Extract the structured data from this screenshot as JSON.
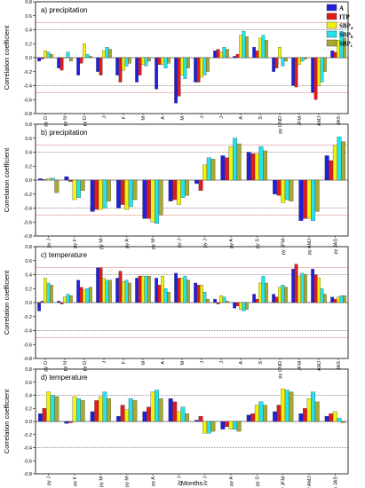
{
  "colors": {
    "A": "#1f1fe0",
    "ITP": "#e21a1a",
    "SBPa": "#f2f20a",
    "SBPb": "#22e4ee",
    "SBPc": "#a8a832",
    "sig95": "#333333",
    "sig99": "#e07878"
  },
  "legend": {
    "items": [
      {
        "key": "A",
        "label": "A"
      },
      {
        "key": "ITP",
        "label": "ITP"
      },
      {
        "key": "SBPa",
        "label": "SBP",
        "sub": "a"
      },
      {
        "key": "SBPb",
        "label": "SBP",
        "sub": "b"
      },
      {
        "key": "SBPc",
        "label": "SBP",
        "sub": "c"
      }
    ]
  },
  "chart_data": [
    {
      "type": "bar",
      "title": "a) precipitation",
      "ylabel": "Correlation coefficient",
      "xlabel": "",
      "ylim": [
        -0.8,
        0.8
      ],
      "yticks": [
        "0.8",
        "0.6",
        "0.4",
        "0.2",
        "0.0",
        "-0.2",
        "-0.4",
        "-0.6",
        "-0.8"
      ],
      "sig_lines": [
        0.4,
        -0.4,
        0.5,
        -0.5
      ],
      "categories": [
        "py O",
        "py N",
        "py D",
        "J",
        "F",
        "M",
        "A",
        "M",
        "J",
        "J",
        "A",
        "S",
        "py OND",
        "JFM",
        "AMJ",
        "JAS"
      ],
      "series": [
        {
          "name": "A",
          "values": [
            -0.05,
            -0.15,
            -0.25,
            -0.2,
            -0.25,
            -0.35,
            -0.45,
            -0.65,
            -0.35,
            0.1,
            0.02,
            0.15,
            -0.2,
            -0.4,
            -0.5,
            0.1
          ]
        },
        {
          "name": "ITP",
          "values": [
            -0.02,
            -0.18,
            -0.08,
            -0.25,
            -0.35,
            -0.25,
            -0.1,
            -0.55,
            -0.35,
            0.12,
            0.05,
            0.1,
            -0.15,
            -0.42,
            -0.6,
            0.08
          ]
        },
        {
          "name": "SBPa",
          "values": [
            0.1,
            0.0,
            0.2,
            0.1,
            -0.18,
            -0.1,
            -0.1,
            -0.25,
            -0.28,
            0.08,
            0.32,
            0.28,
            0.15,
            -0.1,
            -0.4,
            0.25
          ]
        },
        {
          "name": "SBPb",
          "values": [
            0.08,
            0.08,
            0.05,
            0.15,
            -0.12,
            -0.12,
            -0.15,
            -0.3,
            -0.25,
            0.15,
            0.38,
            0.32,
            -0.12,
            -0.05,
            -0.35,
            0.38
          ]
        },
        {
          "name": "SBPc",
          "values": [
            0.05,
            -0.05,
            0.02,
            0.12,
            -0.08,
            -0.05,
            -0.08,
            -0.15,
            -0.2,
            0.12,
            0.3,
            0.25,
            -0.05,
            -0.02,
            -0.2,
            0.28
          ]
        }
      ]
    },
    {
      "type": "bar",
      "title": "b) precipitation",
      "ylabel": "Correlation coefficient",
      "xlabel": "",
      "ylim": [
        -0.8,
        0.8
      ],
      "yticks": [
        "0.8",
        "0.6",
        "0.4",
        "0.2",
        "0.0",
        "-0.2",
        "-0.4",
        "-0.6",
        "-0.8"
      ],
      "sig_lines": [
        0.4,
        -0.4,
        0.5,
        -0.5
      ],
      "categories": [
        "py J",
        "py F",
        "py M",
        "py A",
        "py M",
        "py J",
        "py J",
        "py A",
        "py S",
        "py JFM",
        "py AMJ",
        "py JAS"
      ],
      "series": [
        {
          "name": "A",
          "values": [
            0.02,
            0.05,
            -0.45,
            -0.4,
            -0.55,
            -0.3,
            -0.05,
            0.35,
            0.4,
            -0.2,
            -0.58,
            0.35
          ]
        },
        {
          "name": "ITP",
          "values": [
            0.01,
            -0.02,
            -0.42,
            -0.35,
            -0.55,
            -0.28,
            -0.15,
            0.32,
            0.38,
            -0.22,
            -0.55,
            0.28
          ]
        },
        {
          "name": "SBPa",
          "values": [
            0.02,
            -0.28,
            -0.42,
            -0.42,
            -0.6,
            -0.35,
            0.22,
            0.48,
            0.38,
            -0.32,
            -0.55,
            0.5
          ]
        },
        {
          "name": "SBPb",
          "values": [
            0.03,
            -0.25,
            -0.4,
            -0.38,
            -0.62,
            -0.25,
            0.32,
            0.6,
            0.48,
            -0.28,
            -0.58,
            0.62
          ]
        },
        {
          "name": "SBPc",
          "values": [
            -0.18,
            -0.15,
            -0.3,
            -0.28,
            -0.5,
            -0.22,
            0.3,
            0.52,
            0.42,
            -0.3,
            -0.45,
            0.55
          ]
        }
      ]
    },
    {
      "type": "bar",
      "title": "c) temperature",
      "ylabel": "Correlation coefficient",
      "xlabel": "",
      "ylim": [
        -0.8,
        0.8
      ],
      "yticks": [
        "0.8",
        "0.6",
        "0.4",
        "0.2",
        "0.0",
        "-0.2",
        "-0.4",
        "-0.6",
        "-0.8"
      ],
      "sig_lines": [
        0.4,
        -0.4,
        0.5,
        -0.5
      ],
      "categories": [
        "py O",
        "py N",
        "py D",
        "J",
        "F",
        "M",
        "A",
        "M",
        "J",
        "J",
        "A",
        "S",
        "py OND",
        "JFM",
        "AMJ",
        "JAS"
      ],
      "series": [
        {
          "name": "A",
          "values": [
            -0.12,
            0.02,
            0.32,
            0.5,
            0.35,
            0.35,
            0.35,
            0.42,
            0.28,
            0.05,
            -0.08,
            0.12,
            0.12,
            0.48,
            0.48,
            0.08
          ]
        },
        {
          "name": "ITP",
          "values": [
            0.02,
            -0.02,
            0.22,
            0.5,
            0.45,
            0.38,
            0.25,
            0.35,
            0.25,
            -0.02,
            -0.05,
            0.05,
            0.08,
            0.55,
            0.4,
            0.05
          ]
        },
        {
          "name": "SBPa",
          "values": [
            0.35,
            0.08,
            0.18,
            0.35,
            0.3,
            0.38,
            0.38,
            0.35,
            0.25,
            0.1,
            -0.1,
            0.28,
            0.22,
            0.38,
            0.35,
            0.08
          ]
        },
        {
          "name": "SBPb",
          "values": [
            0.28,
            0.12,
            0.2,
            0.32,
            0.32,
            0.38,
            0.2,
            0.38,
            0.15,
            0.08,
            -0.12,
            0.38,
            0.25,
            0.42,
            0.2,
            0.1
          ]
        },
        {
          "name": "SBPc",
          "values": [
            0.25,
            0.1,
            0.22,
            0.32,
            0.28,
            0.38,
            0.15,
            0.32,
            0.05,
            0.02,
            -0.1,
            0.28,
            0.22,
            0.4,
            0.12,
            0.1
          ]
        }
      ]
    },
    {
      "type": "bar",
      "title": "d) temperature",
      "ylabel": "Correlation coefficient",
      "xlabel": "Months",
      "ylim": [
        -0.8,
        0.8
      ],
      "yticks": [
        "0.8",
        "0.6",
        "0.4",
        "0.2",
        "0.0",
        "-0.2",
        "-0.4",
        "-0.6",
        "-0.8"
      ],
      "sig_lines": [
        0.4,
        -0.4
      ],
      "categories": [
        "py J",
        "py F",
        "py M",
        "py M",
        "py A",
        "py J",
        "py J",
        "py A",
        "py S",
        "py JFM",
        "py AMJ",
        "py JAS"
      ],
      "series": [
        {
          "name": "A",
          "values": [
            0.12,
            -0.03,
            0.15,
            0.08,
            0.15,
            0.35,
            0.02,
            -0.12,
            0.1,
            0.15,
            0.12,
            0.08
          ]
        },
        {
          "name": "ITP",
          "values": [
            0.2,
            -0.02,
            0.32,
            0.25,
            0.22,
            0.3,
            0.08,
            -0.08,
            0.12,
            0.25,
            0.2,
            0.12
          ]
        },
        {
          "name": "SBPa",
          "values": [
            0.45,
            0.38,
            0.38,
            0.18,
            0.45,
            0.15,
            -0.18,
            -0.12,
            0.25,
            0.5,
            0.35,
            0.15
          ]
        },
        {
          "name": "SBPb",
          "values": [
            0.4,
            0.35,
            0.45,
            0.35,
            0.48,
            0.22,
            -0.18,
            -0.12,
            0.3,
            0.48,
            0.45,
            0.05
          ]
        },
        {
          "name": "SBPc",
          "values": [
            0.38,
            0.32,
            0.35,
            0.32,
            0.35,
            0.12,
            -0.15,
            -0.15,
            0.25,
            0.45,
            0.3,
            -0.02
          ]
        }
      ]
    }
  ]
}
